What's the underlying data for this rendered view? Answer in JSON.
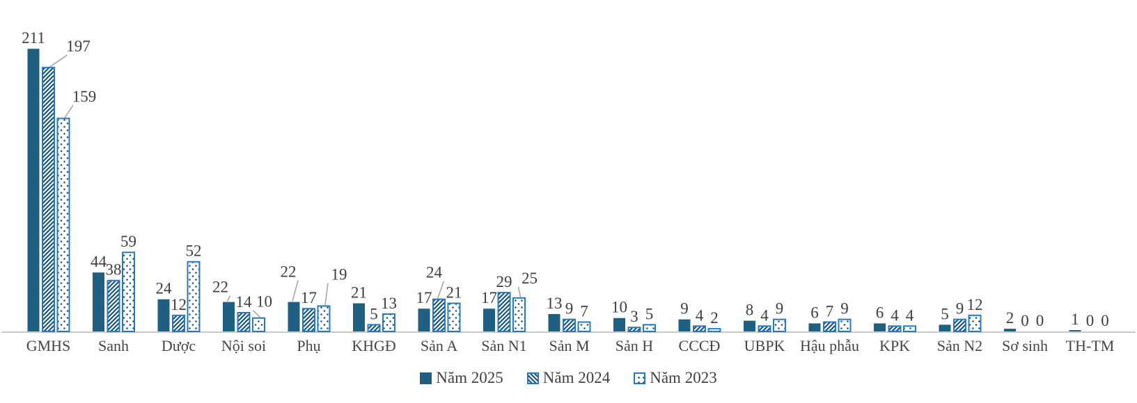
{
  "chart_data": {
    "type": "bar",
    "title": "",
    "xlabel": "",
    "ylabel": "",
    "value_axis_visible": false,
    "gridlines": false,
    "legend_position": "bottom",
    "ylim": [
      0,
      220
    ],
    "categories": [
      "GMHS",
      "Sanh",
      "Dược",
      "Nội soi",
      "Phụ",
      "KHGĐ",
      "Sản A",
      "Sản N1",
      "Sản M",
      "Sản H",
      "CCCĐ",
      "UBPK",
      "Hậu phẫu",
      "KPK",
      "Sản N2",
      "Sơ sinh",
      "TH-TM"
    ],
    "series": [
      {
        "name": "Năm 2025",
        "pattern": "solid",
        "values": [
          211,
          44,
          24,
          22,
          22,
          21,
          17,
          17,
          13,
          10,
          9,
          8,
          6,
          6,
          5,
          2,
          1
        ]
      },
      {
        "name": "Năm 2024",
        "pattern": "diagonal-hatch",
        "values": [
          197,
          38,
          12,
          14,
          17,
          5,
          24,
          29,
          9,
          3,
          4,
          4,
          7,
          4,
          9,
          0,
          0
        ]
      },
      {
        "name": "Năm 2023",
        "pattern": "dots",
        "values": [
          159,
          59,
          52,
          10,
          19,
          13,
          21,
          25,
          7,
          5,
          2,
          9,
          9,
          4,
          12,
          0,
          0
        ]
      }
    ],
    "colors": {
      "solid_fill": "#1f5f82",
      "pattern_stroke": "#17547a",
      "pattern_border": "#2878be",
      "axis_line": "#c9c9c9",
      "label_text": "#3d3d3d",
      "leader_line": "#a6a6a6"
    },
    "label_adjustments": {
      "0-1": {
        "dx": 43,
        "dy": -15,
        "leader": true
      },
      "0-2": {
        "dx": 30,
        "dy": -16,
        "leader": true
      },
      "3-0": {
        "dx": -12,
        "dy": -6,
        "leader": true
      },
      "3-2": {
        "dx": 8,
        "dy": -8,
        "leader": true
      },
      "4-0": {
        "dx": -8,
        "dy": -28,
        "leader": true
      },
      "4-2": {
        "dx": 22,
        "dy": -30,
        "leader": true
      },
      "6-1": {
        "dx": -7,
        "dy": -23,
        "leader": true
      },
      "7-2": {
        "dx": 15,
        "dy": -13,
        "leader": true
      }
    }
  }
}
